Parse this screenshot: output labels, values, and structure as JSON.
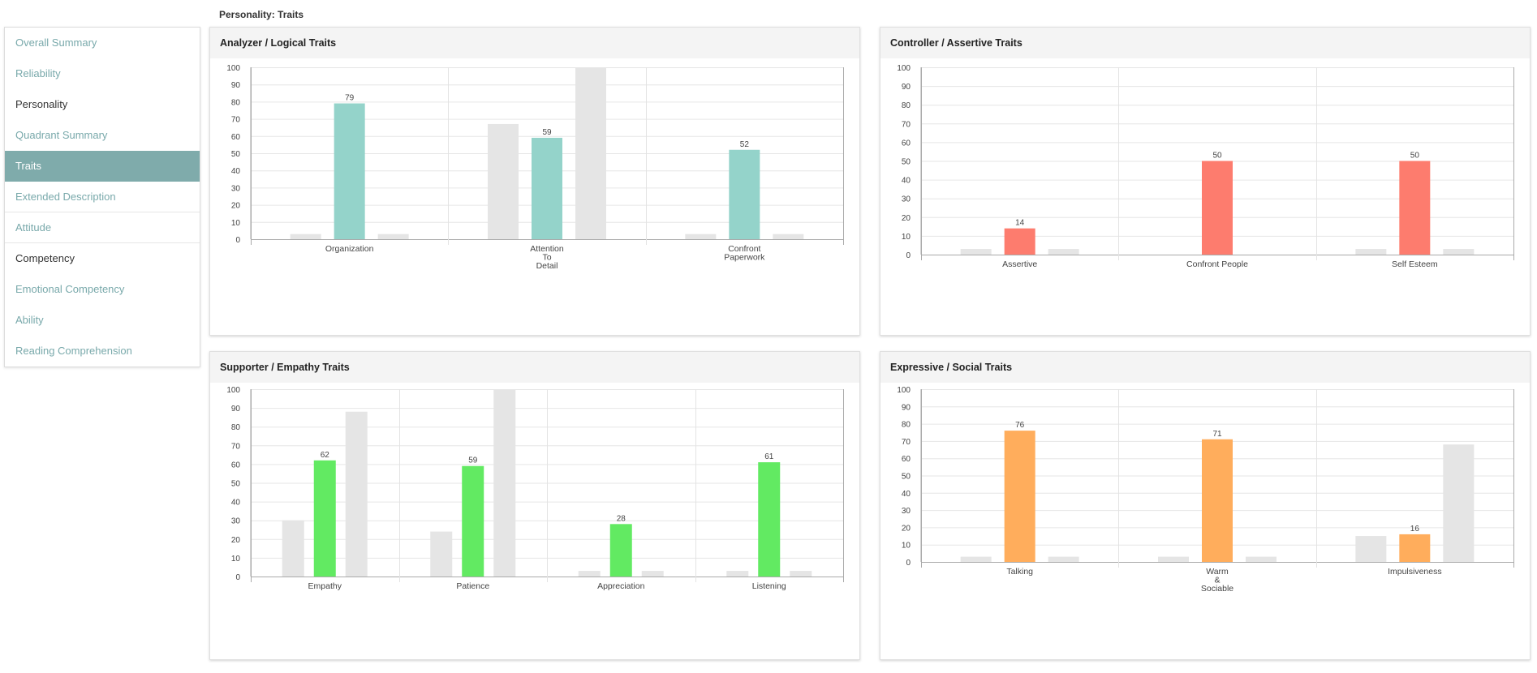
{
  "header": {
    "title": "Personality: Traits"
  },
  "sidebar": {
    "items": [
      {
        "label": "Overall Summary",
        "state": "link"
      },
      {
        "label": "Reliability",
        "state": "link"
      },
      {
        "label": "Personality",
        "state": "dark"
      },
      {
        "label": "Quadrant Summary",
        "state": "link"
      },
      {
        "label": "Traits",
        "state": "active"
      },
      {
        "label": "Extended Description",
        "state": "link"
      },
      {
        "label": "Attitude",
        "state": "link"
      },
      {
        "label": "Competency",
        "state": "dark"
      },
      {
        "label": "Emotional Competency",
        "state": "link"
      },
      {
        "label": "Ability",
        "state": "link"
      },
      {
        "label": "Reading Comprehension",
        "state": "link"
      }
    ]
  },
  "colors": {
    "gray": "#e5e5e5",
    "teal": "#94d3ca",
    "salmon": "#fd7c6e",
    "green": "#62ea62",
    "orange": "#ffad5c"
  },
  "chart_data": [
    {
      "type": "bar",
      "title": "Analyzer / Logical Traits",
      "ylim": [
        0,
        100
      ],
      "yticks": [
        0,
        10,
        20,
        30,
        40,
        50,
        60,
        70,
        80,
        90,
        100
      ],
      "color": "#94d3ca",
      "categories": [
        {
          "label": [
            "Organization"
          ],
          "left": 3,
          "value": 79,
          "right": 3
        },
        {
          "label": [
            "Attention",
            "To",
            "Detail"
          ],
          "left": 67,
          "value": 59,
          "right": 100
        },
        {
          "label": [
            "Confront",
            "Paperwork"
          ],
          "left": 3,
          "value": 52,
          "right": 3
        }
      ]
    },
    {
      "type": "bar",
      "title": "Controller / Assertive Traits",
      "ylim": [
        0,
        100
      ],
      "yticks": [
        0,
        10,
        20,
        30,
        40,
        50,
        60,
        70,
        80,
        90,
        100
      ],
      "color": "#fd7c6e",
      "categories": [
        {
          "label": [
            "Assertive"
          ],
          "left": 3,
          "value": 14,
          "right": 3
        },
        {
          "label": [
            "Confront People"
          ],
          "left": 0,
          "value": 50,
          "right": 0
        },
        {
          "label": [
            "Self Esteem"
          ],
          "left": 3,
          "value": 50,
          "right": 3
        }
      ]
    },
    {
      "type": "bar",
      "title": "Supporter / Empathy Traits",
      "ylim": [
        0,
        100
      ],
      "yticks": [
        0,
        10,
        20,
        30,
        40,
        50,
        60,
        70,
        80,
        90,
        100
      ],
      "color": "#62ea62",
      "categories": [
        {
          "label": [
            "Empathy"
          ],
          "left": 30,
          "value": 62,
          "right": 88
        },
        {
          "label": [
            "Patience"
          ],
          "left": 24,
          "value": 59,
          "right": 100
        },
        {
          "label": [
            "Appreciation"
          ],
          "left": 3,
          "value": 28,
          "right": 3
        },
        {
          "label": [
            "Listening"
          ],
          "left": 3,
          "value": 61,
          "right": 3
        }
      ]
    },
    {
      "type": "bar",
      "title": "Expressive / Social Traits",
      "ylim": [
        0,
        100
      ],
      "yticks": [
        0,
        10,
        20,
        30,
        40,
        50,
        60,
        70,
        80,
        90,
        100
      ],
      "color": "#ffad5c",
      "categories": [
        {
          "label": [
            "Talking"
          ],
          "left": 3,
          "value": 76,
          "right": 3
        },
        {
          "label": [
            "Warm",
            "&",
            "Sociable"
          ],
          "left": 3,
          "value": 71,
          "right": 3
        },
        {
          "label": [
            "Impulsiveness"
          ],
          "left": 15,
          "value": 16,
          "right": 68
        }
      ]
    }
  ]
}
